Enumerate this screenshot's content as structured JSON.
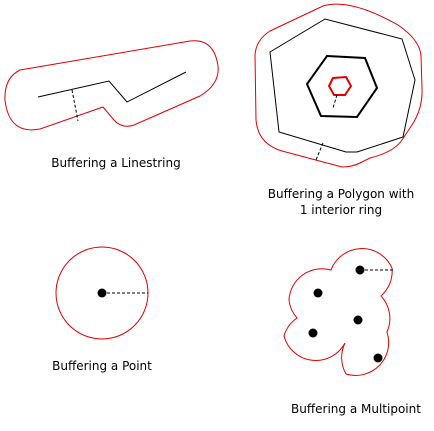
{
  "colors": {
    "buffer": "#e00000",
    "geometry": "#000000",
    "background": "#ffffff"
  },
  "captions": {
    "linestring": "Buffering a Linestring",
    "polygon_line1": "Buffering a Polygon with",
    "polygon_line2": "1 interior ring",
    "point": "Buffering a Point",
    "multipoint": "Buffering a Multipoint"
  }
}
